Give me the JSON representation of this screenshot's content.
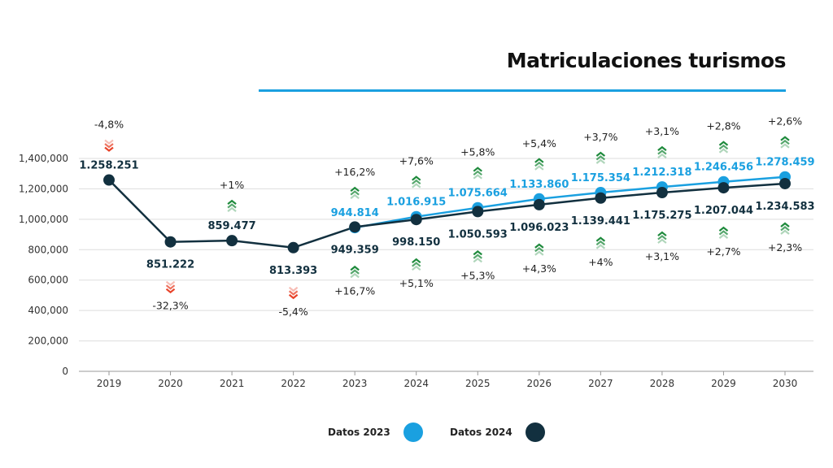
{
  "title": "Matriculaciones turismos",
  "chart_data": {
    "type": "line",
    "categories": [
      "2019",
      "2020",
      "2021",
      "2022",
      "2023",
      "2024",
      "2025",
      "2026",
      "2027",
      "2028",
      "2029",
      "2030"
    ],
    "ylim": [
      0,
      1400000
    ],
    "yticks": [
      0,
      200000,
      400000,
      600000,
      800000,
      1000000,
      1200000,
      1400000
    ],
    "ytick_labels": [
      "0",
      "200,000",
      "400,000",
      "600,000",
      "800,000",
      "1,000,000",
      "1,200,000",
      "1,400,000"
    ],
    "grid": true,
    "legend_position": "bottom",
    "series": [
      {
        "name": "Datos 2023",
        "color": "#1aa0e0",
        "values": [
          null,
          null,
          null,
          null,
          944814,
          1016915,
          1075664,
          1133860,
          1175354,
          1212318,
          1246456,
          1278459
        ],
        "labels": [
          "",
          "",
          "",
          "",
          "944.814",
          "1.016.915",
          "1.075.664",
          "1.133.860",
          "1.175.354",
          "1.212.318",
          "1.246.456",
          "1.278.459"
        ]
      },
      {
        "name": "Datos 2024",
        "color": "#12303f",
        "values": [
          1258251,
          851222,
          859477,
          813393,
          949359,
          998150,
          1050593,
          1096023,
          1139441,
          1175275,
          1207044,
          1234583
        ],
        "labels": [
          "1.258.251",
          "851.222",
          "859.477",
          "813.393",
          "949.359",
          "998.150",
          "1.050.593",
          "1.096.023",
          "1.139.441",
          "1.175.275",
          "1.207.044",
          "1.234.583"
        ]
      }
    ],
    "annotations": {
      "above": [
        {
          "pct": "-4,8%",
          "dir": "down"
        },
        {
          "pct": "",
          "dir": ""
        },
        {
          "pct": "+1%",
          "dir": "up"
        },
        {
          "pct": "",
          "dir": ""
        },
        {
          "pct": "+16,2%",
          "dir": "up"
        },
        {
          "pct": "+7,6%",
          "dir": "up"
        },
        {
          "pct": "+5,8%",
          "dir": "up"
        },
        {
          "pct": "+5,4%",
          "dir": "up"
        },
        {
          "pct": "+3,7%",
          "dir": "up"
        },
        {
          "pct": "+3,1%",
          "dir": "up"
        },
        {
          "pct": "+2,8%",
          "dir": "up"
        },
        {
          "pct": "+2,6%",
          "dir": "up"
        }
      ],
      "below": [
        {
          "pct": "",
          "dir": ""
        },
        {
          "pct": "-32,3%",
          "dir": "down"
        },
        {
          "pct": "",
          "dir": ""
        },
        {
          "pct": "-5,4%",
          "dir": "down"
        },
        {
          "pct": "+16,7%",
          "dir": "up"
        },
        {
          "pct": "+5,1%",
          "dir": "up"
        },
        {
          "pct": "+5,3%",
          "dir": "up"
        },
        {
          "pct": "+4,3%",
          "dir": "up"
        },
        {
          "pct": "+4%",
          "dir": "up"
        },
        {
          "pct": "+3,1%",
          "dir": "up"
        },
        {
          "pct": "+2,7%",
          "dir": "up"
        },
        {
          "pct": "+2,3%",
          "dir": "up"
        }
      ]
    },
    "arrow_colors": {
      "up": "#1e8a3c",
      "down": "#e8432a"
    }
  }
}
